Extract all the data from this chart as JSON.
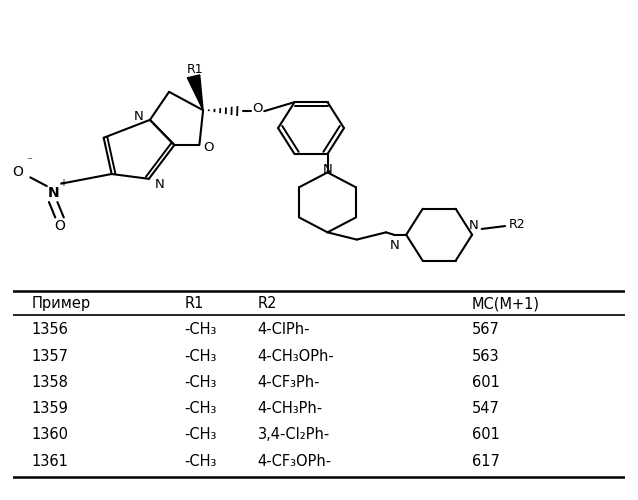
{
  "table_headers": [
    "Пример",
    "R1",
    "R2",
    "MC(M+1)"
  ],
  "table_rows": [
    [
      "1356",
      "-CH₃",
      "4-ClPh-",
      "567"
    ],
    [
      "1357",
      "-CH₃",
      "4-CH₃OPh-",
      "563"
    ],
    [
      "1358",
      "-CH₃",
      "4-CF₃Ph-",
      "601"
    ],
    [
      "1359",
      "-CH₃",
      "4-CH₃Ph-",
      "547"
    ],
    [
      "1360",
      "-CH₃",
      "3,4-Cl₂Ph-",
      "601"
    ],
    [
      "1361",
      "-CH₃",
      "4-CF₃OPh-",
      "617"
    ]
  ],
  "bg_color": "#ffffff",
  "text_color": "#000000",
  "line_color": "#000000",
  "font_size_table": 10.5,
  "font_size_header": 10.5
}
